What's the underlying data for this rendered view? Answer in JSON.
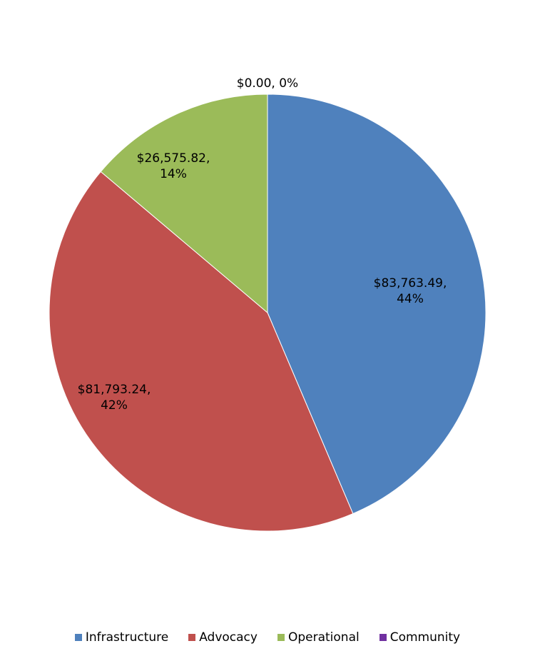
{
  "chart_data": {
    "type": "pie",
    "categories": [
      "Infrastructure",
      "Advocacy",
      "Operational",
      "Community"
    ],
    "values": [
      83763.49,
      81793.24,
      26575.82,
      0
    ],
    "value_labels": [
      "$83,763.49, 44%",
      "$81,793.24, 42%",
      "$26,575.82, 14%",
      "$0.00, 0%"
    ],
    "colors": [
      "#4f81bd",
      "#c0504d",
      "#9bbb59",
      "#7030a0"
    ],
    "legend": "bottom"
  }
}
